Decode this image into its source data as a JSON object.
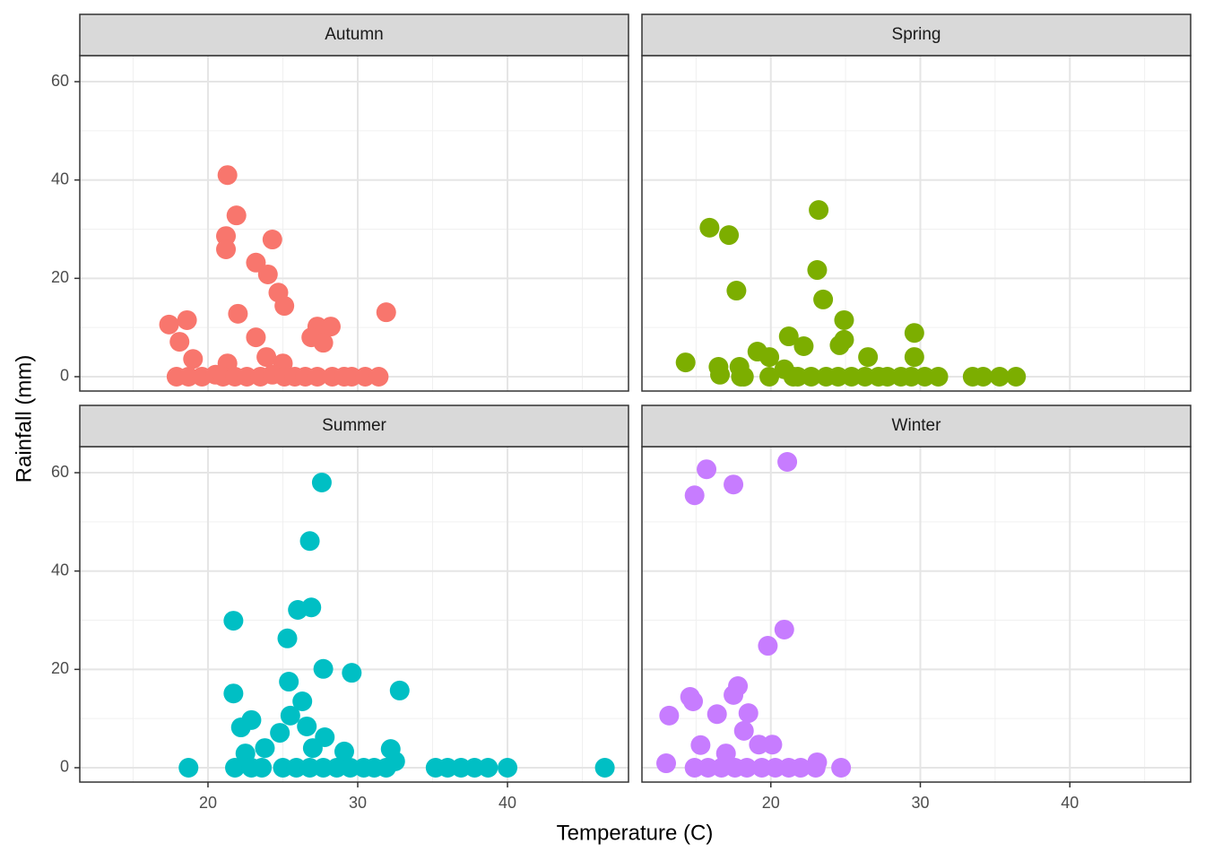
{
  "chart_data": [
    {
      "type": "scatter",
      "title": "Autumn",
      "series": [
        {
          "name": "Autumn",
          "color": "#F8766D",
          "x": [
            21.3,
            21.9,
            21.2,
            24.3,
            21.2,
            23.2,
            24.0,
            24.7,
            25.1,
            22.0,
            31.9,
            17.4,
            18.6,
            27.3,
            28.2,
            26.9,
            27.7,
            23.2,
            18.1,
            19.0,
            23.9,
            21.3,
            25.0,
            17.9,
            18.7,
            19.6,
            20.5,
            21.0,
            21.8,
            22.6,
            23.5,
            24.3,
            25.1,
            25.8,
            26.5,
            27.3,
            28.3,
            29.1,
            29.6,
            30.5,
            31.4
          ],
          "values": [
            41,
            32.8,
            28.6,
            27.9,
            25.9,
            23.2,
            20.8,
            17.1,
            14.4,
            12.8,
            13.1,
            10.6,
            11.5,
            10.2,
            10.2,
            8.0,
            6.9,
            8.0,
            7.1,
            3.6,
            4.0,
            2.7,
            2.7,
            0,
            0,
            0,
            0.4,
            0,
            0,
            0,
            0,
            0.4,
            0,
            0,
            0,
            0,
            0,
            0,
            0,
            0,
            0
          ]
        }
      ],
      "xlim": [
        11.44,
        48.08
      ],
      "xticks": [
        20,
        30,
        40
      ],
      "ylim": [
        -2.92,
        65.3
      ],
      "yticks": [
        0,
        20,
        40,
        60
      ],
      "x_minor_ticks": [
        15,
        25,
        35,
        45
      ],
      "y_minor_ticks": [
        10,
        30,
        50
      ],
      "grid": true
    },
    {
      "type": "scatter",
      "title": "Spring",
      "series": [
        {
          "name": "Spring",
          "color": "#7CAE00",
          "x": [
            23.2,
            15.9,
            17.2,
            23.1,
            17.7,
            23.5,
            24.9,
            21.2,
            29.6,
            22.2,
            24.9,
            24.6,
            14.3,
            19.1,
            26.5,
            29.6,
            19.9,
            16.5,
            17.9,
            16.6,
            20.9,
            18.0,
            18.2,
            19.9,
            21.5,
            21.8,
            22.7,
            23.7,
            24.5,
            25.4,
            26.3,
            27.2,
            27.8,
            28.7,
            29.4,
            30.3,
            31.2,
            33.5,
            34.2,
            35.3,
            36.4
          ],
          "values": [
            33.9,
            30.3,
            28.8,
            21.7,
            17.5,
            15.7,
            11.5,
            8.2,
            8.9,
            6.2,
            7.5,
            6.4,
            2.9,
            5.1,
            4.0,
            4.0,
            4.0,
            2.0,
            2.0,
            0.4,
            1.5,
            0,
            0,
            0,
            0,
            0,
            0,
            0,
            0,
            0,
            0,
            0,
            0,
            0,
            0,
            0,
            0,
            0,
            0,
            0,
            0
          ]
        }
      ],
      "xlim": [
        11.38,
        48.08
      ],
      "xticks": [
        20,
        30,
        40
      ],
      "ylim": [
        -2.92,
        65.3
      ],
      "yticks": [
        0,
        20,
        40,
        60
      ],
      "x_minor_ticks": [
        15,
        25,
        35,
        45
      ],
      "y_minor_ticks": [
        10,
        30,
        50
      ],
      "grid": true
    },
    {
      "type": "scatter",
      "title": "Summer",
      "series": [
        {
          "name": "Summer",
          "color": "#00BFC4",
          "x": [
            27.6,
            26.8,
            26.9,
            26.0,
            21.7,
            25.3,
            27.7,
            29.6,
            21.7,
            32.8,
            25.4,
            26.3,
            25.5,
            22.9,
            22.2,
            26.6,
            24.8,
            27.8,
            27.0,
            29.1,
            23.8,
            22.5,
            32.2,
            32.5,
            18.7,
            21.8,
            22.9,
            23.6,
            25.0,
            25.9,
            26.8,
            27.7,
            28.6,
            29.5,
            30.4,
            31.1,
            31.9,
            35.2,
            36.0,
            36.9,
            37.8,
            38.7,
            40.0,
            46.5
          ],
          "values": [
            58.0,
            46.1,
            32.6,
            32.1,
            29.9,
            26.3,
            20.1,
            19.3,
            15.1,
            15.7,
            17.5,
            13.5,
            10.6,
            9.7,
            8.2,
            8.4,
            7.1,
            6.2,
            4.0,
            3.3,
            4.0,
            2.9,
            3.8,
            1.3,
            0,
            0,
            0,
            0,
            0,
            0,
            0,
            0,
            0,
            0,
            0,
            0,
            0,
            0,
            0,
            0,
            0,
            0,
            0,
            0
          ]
        }
      ],
      "xlim": [
        11.44,
        48.08
      ],
      "xticks": [
        20,
        30,
        40
      ],
      "ylim": [
        -2.92,
        65.3
      ],
      "yticks": [
        0,
        20,
        40,
        60
      ],
      "x_minor_ticks": [
        15,
        25,
        35,
        45
      ],
      "y_minor_ticks": [
        10,
        30,
        50
      ],
      "grid": true
    },
    {
      "type": "scatter",
      "title": "Winter",
      "series": [
        {
          "name": "Winter",
          "color": "#C77CFF",
          "x": [
            21.1,
            15.7,
            17.5,
            14.9,
            20.9,
            19.8,
            17.8,
            17.5,
            14.6,
            14.8,
            18.5,
            16.4,
            13.2,
            18.2,
            20.1,
            15.3,
            19.2,
            17.0,
            13.0,
            23.1,
            14.9,
            15.8,
            16.7,
            17.6,
            18.4,
            19.4,
            20.3,
            21.2,
            22.0,
            23.0,
            24.7
          ],
          "values": [
            62.2,
            60.7,
            57.6,
            55.4,
            28.1,
            24.8,
            16.6,
            14.8,
            14.4,
            13.5,
            11.1,
            10.9,
            10.6,
            7.5,
            4.7,
            4.6,
            4.7,
            2.9,
            0.9,
            1.1,
            0,
            0,
            0,
            0,
            0,
            0,
            0,
            0,
            0,
            0,
            0
          ]
        }
      ],
      "xlim": [
        11.38,
        48.08
      ],
      "xticks": [
        20,
        30,
        40
      ],
      "ylim": [
        -2.92,
        65.3
      ],
      "yticks": [
        0,
        20,
        40,
        60
      ],
      "x_minor_ticks": [
        15,
        25,
        35,
        45
      ],
      "y_minor_ticks": [
        10,
        30,
        50
      ],
      "grid": true
    }
  ],
  "xlabel": "Temperature (C)",
  "ylabel": "Rainfall (mm)"
}
